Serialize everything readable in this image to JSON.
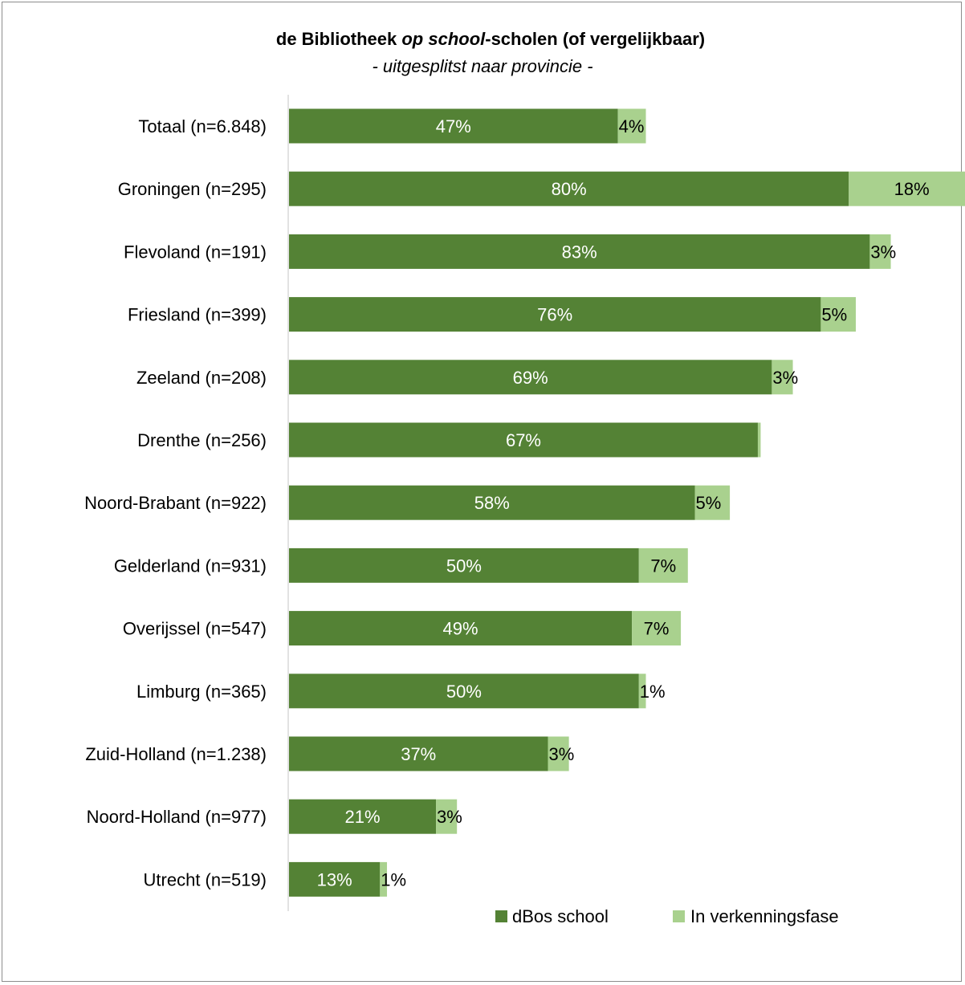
{
  "chart_data": {
    "type": "bar",
    "orientation": "horizontal",
    "stacked": true,
    "title_parts": [
      "de Bibliotheek ",
      "op school",
      "-scholen (of vergelijkbaar)"
    ],
    "subtitle": "- uitgesplitst naar provincie -",
    "categories": [
      "Totaal (n=6.848)",
      "Groningen (n=295)",
      "Flevoland (n=191)",
      "Friesland (n=399)",
      "Zeeland (n=208)",
      "Drenthe (n=256)",
      "Noord-Brabant (n=922)",
      "Gelderland (n=931)",
      "Overijssel (n=547)",
      "Limburg (n=365)",
      "Zuid-Holland (n=1.238)",
      "Noord-Holland (n=977)",
      "Utrecht (n=519)"
    ],
    "series": [
      {
        "name": "dBos school",
        "color": "#548235",
        "label_color": "#ffffff",
        "values": [
          47,
          80,
          83,
          76,
          69,
          67,
          58,
          50,
          49,
          50,
          37,
          21,
          13
        ],
        "labels": [
          "47%",
          "80%",
          "83%",
          "76%",
          "69%",
          "67%",
          "58%",
          "50%",
          "49%",
          "50%",
          "37%",
          "21%",
          "13%"
        ]
      },
      {
        "name": "In verkenningsfase",
        "color": "#a9d18e",
        "label_color": "#000000",
        "values": [
          4,
          18,
          3,
          5,
          3,
          0.4,
          5,
          7,
          7,
          1,
          3,
          3,
          1
        ],
        "labels": [
          "4%",
          "18%",
          "3%",
          "5%",
          "3%",
          "",
          "5%",
          "7%",
          "7%",
          "1%",
          "3%",
          "3%",
          "1%"
        ]
      }
    ],
    "xlim": [
      0,
      95
    ],
    "legend_position": "bottom",
    "grid": false
  }
}
